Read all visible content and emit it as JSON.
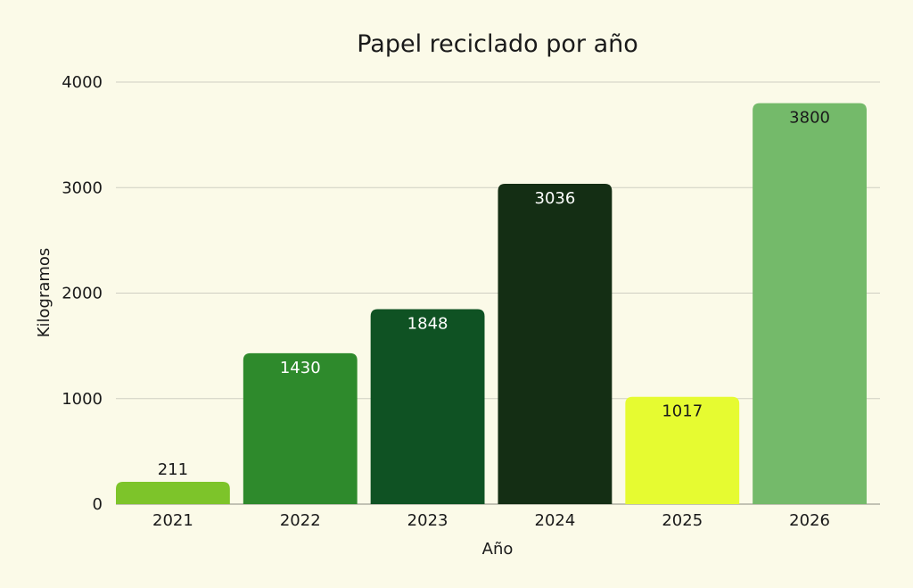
{
  "chart_data": {
    "type": "bar",
    "title": "Papel reciclado por año",
    "xlabel": "Año",
    "ylabel": "Kilogramos",
    "categories": [
      "2021",
      "2022",
      "2023",
      "2024",
      "2025",
      "2026"
    ],
    "values": [
      211,
      1430,
      1848,
      3036,
      1017,
      3800
    ],
    "value_labels": [
      "211",
      "1430",
      "1848",
      "3036",
      "1017",
      "3800"
    ],
    "bar_colors": [
      "#7dc42a",
      "#2e8a2c",
      "#0f5223",
      "#142e14",
      "#e6fb31",
      "#74ba6a"
    ],
    "label_colors": [
      "#1a1a1a",
      "#ffffff",
      "#ffffff",
      "#ffffff",
      "#1a1a1a",
      "#1a1a1a"
    ],
    "ylim": [
      0,
      4000
    ],
    "yticks": [
      0,
      1000,
      2000,
      3000,
      4000
    ],
    "ytick_labels": [
      "0",
      "1000",
      "2000",
      "3000",
      "4000"
    ],
    "grid": true,
    "legend": "none",
    "colors": {
      "background": "#fbfae8",
      "grid": "#cfcfc2",
      "text": "#1a1a1a"
    }
  }
}
